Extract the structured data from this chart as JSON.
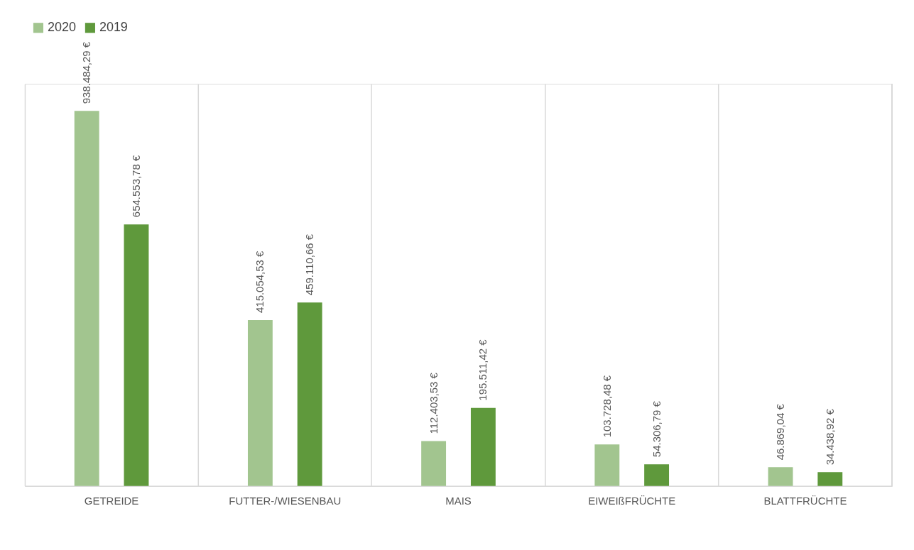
{
  "chart_data": {
    "type": "bar",
    "categories": [
      "GETREIDE",
      "FUTTER-/WIESENBAU",
      "MAIS",
      "EIWEIßFRÜCHTE",
      "BLATTFRÜCHTE"
    ],
    "series": [
      {
        "name": "2020",
        "color": "#a2c58f",
        "values": [
          938484.29,
          415054.53,
          112403.53,
          103728.48,
          46869.04
        ],
        "value_labels": [
          "938.484,29 €",
          "415.054,53 €",
          "112.403,53 €",
          "103.728,48 €",
          "46.869,04 €"
        ]
      },
      {
        "name": "2019",
        "color": "#5f993c",
        "values": [
          654553.78,
          459110.66,
          195511.42,
          54306.79,
          34438.92
        ],
        "value_labels": [
          "654.553,78 €",
          "459.110,66 €",
          "195.511,42 €",
          "54.306,79 €",
          "34.438,92 €"
        ]
      }
    ],
    "legend": "top",
    "grid": "x"
  }
}
